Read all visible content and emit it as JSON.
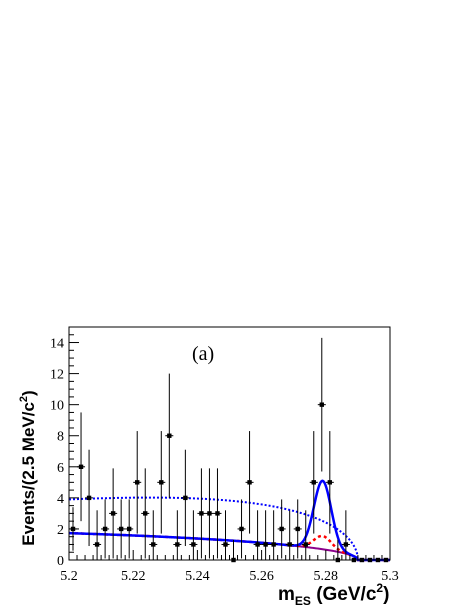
{
  "chart_data": {
    "type": "scatter",
    "annotation": "(a)",
    "xlabel": {
      "main": "m",
      "sub": "ES",
      "unit_prefix": " (GeV/c",
      "unit_sup": "2",
      "unit_suffix": ")"
    },
    "ylabel": {
      "main": "Events/(2.5 MeV/c",
      "sup": "2",
      "suffix": ")"
    },
    "xlim": [
      5.2,
      5.3
    ],
    "ylim": [
      0,
      15
    ],
    "x_ticks": [
      "5.2",
      "5.22",
      "5.24",
      "5.26",
      "5.28",
      "5.3"
    ],
    "x_tick_values": [
      5.2,
      5.22,
      5.24,
      5.26,
      5.28,
      5.3
    ],
    "y_ticks": [
      "0",
      "2",
      "4",
      "6",
      "8",
      "10",
      "12",
      "14"
    ],
    "y_tick_values": [
      0,
      2,
      4,
      6,
      8,
      10,
      12,
      14
    ],
    "bin_width": 0.0025,
    "points": [
      {
        "x": 5.20125,
        "y": 2,
        "err": 1.4
      },
      {
        "x": 5.20375,
        "y": 6,
        "err": 3.5
      },
      {
        "x": 5.20625,
        "y": 4,
        "err": 3.1
      },
      {
        "x": 5.20875,
        "y": 1,
        "err": 2.2
      },
      {
        "x": 5.21125,
        "y": 2,
        "err": 1.9
      },
      {
        "x": 5.21375,
        "y": 3,
        "err": 2.9
      },
      {
        "x": 5.21625,
        "y": 2,
        "err": 1.9
      },
      {
        "x": 5.21875,
        "y": 2,
        "err": 1.9
      },
      {
        "x": 5.22125,
        "y": 5,
        "err": 3.3
      },
      {
        "x": 5.22375,
        "y": 3,
        "err": 2.9
      },
      {
        "x": 5.22625,
        "y": 1,
        "err": 2.2
      },
      {
        "x": 5.22875,
        "y": 5,
        "err": 3.3
      },
      {
        "x": 5.23125,
        "y": 8,
        "err": 4.0
      },
      {
        "x": 5.23375,
        "y": 1,
        "err": 2.2
      },
      {
        "x": 5.23625,
        "y": 4,
        "err": 3.1
      },
      {
        "x": 5.23875,
        "y": 1,
        "err": 2.2
      },
      {
        "x": 5.24125,
        "y": 3,
        "err": 2.9
      },
      {
        "x": 5.24375,
        "y": 3,
        "err": 2.9
      },
      {
        "x": 5.24625,
        "y": 3,
        "err": 2.9
      },
      {
        "x": 5.24875,
        "y": 1,
        "err": 2.2
      },
      {
        "x": 5.25125,
        "y": 0,
        "err": 1.3
      },
      {
        "x": 5.25375,
        "y": 2,
        "err": 1.9
      },
      {
        "x": 5.25625,
        "y": 5,
        "err": 3.3
      },
      {
        "x": 5.25875,
        "y": 1,
        "err": 2.2
      },
      {
        "x": 5.26125,
        "y": 1,
        "err": 2.2
      },
      {
        "x": 5.26375,
        "y": 1,
        "err": 2.2
      },
      {
        "x": 5.26625,
        "y": 2,
        "err": 1.9
      },
      {
        "x": 5.26875,
        "y": 1,
        "err": 2.2
      },
      {
        "x": 5.27125,
        "y": 2,
        "err": 1.9
      },
      {
        "x": 5.27375,
        "y": 1,
        "err": 2.2
      },
      {
        "x": 5.27625,
        "y": 5,
        "err": 3.3
      },
      {
        "x": 5.27875,
        "y": 10,
        "err": 4.3
      },
      {
        "x": 5.28125,
        "y": 5,
        "err": 3.3
      },
      {
        "x": 5.28375,
        "y": 0,
        "err": 1.3
      },
      {
        "x": 5.28625,
        "y": 1,
        "err": 2.2
      },
      {
        "x": 5.28875,
        "y": 0,
        "err": 0
      },
      {
        "x": 5.29125,
        "y": 0,
        "err": 0
      },
      {
        "x": 5.29375,
        "y": 0,
        "err": 0
      },
      {
        "x": 5.29625,
        "y": 0,
        "err": 0
      },
      {
        "x": 5.29875,
        "y": 0,
        "err": 0
      }
    ],
    "curves": {
      "total": {
        "style": "solid",
        "color": "#0000ff"
      },
      "signal": {
        "style": "dashed",
        "color": "#ff0000"
      },
      "background": {
        "style": "dotted",
        "color": "#0000ff"
      },
      "combined_bkg": {
        "style": "solid-thin",
        "color": "#8b008b"
      }
    }
  }
}
